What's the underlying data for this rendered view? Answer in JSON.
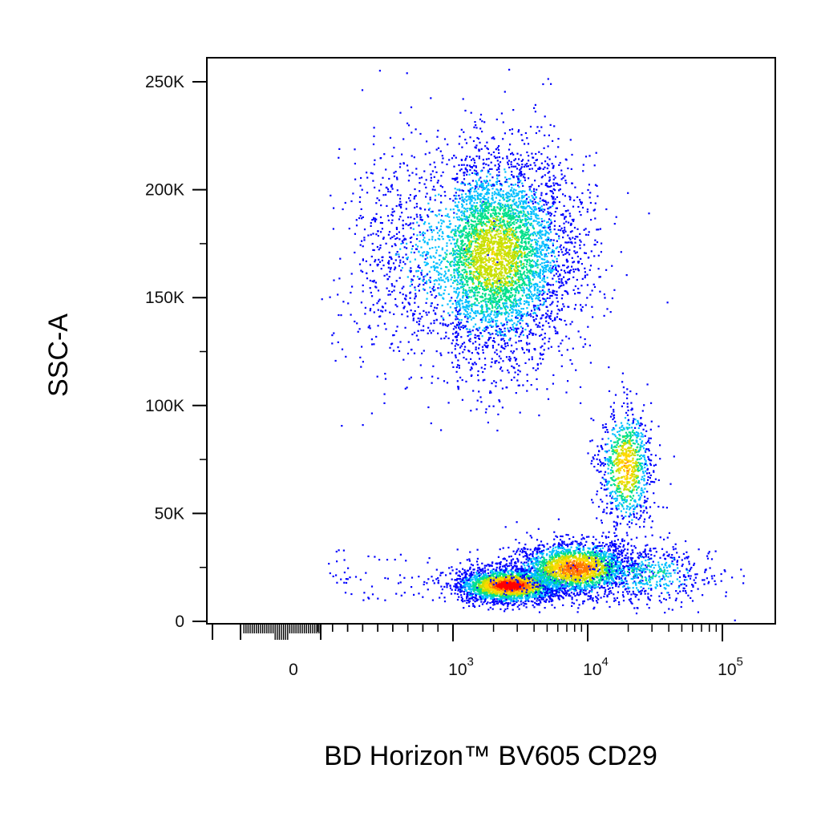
{
  "chart_data": {
    "type": "scatter",
    "subtype": "flow-cytometry-density-dot-plot",
    "title": "",
    "xlabel": "BD Horizon™ BV605  CD29",
    "ylabel": "SSC-A",
    "x_scale": "biexponential",
    "y_scale": "linear",
    "xlim": [
      -300,
      200000
    ],
    "ylim": [
      0,
      262144
    ],
    "x_ticks": [
      {
        "value": 0,
        "base": "0",
        "exp": ""
      },
      {
        "value": 1000,
        "base": "10",
        "exp": "3"
      },
      {
        "value": 10000,
        "base": "10",
        "exp": "4"
      },
      {
        "value": 100000,
        "base": "10",
        "exp": "5"
      }
    ],
    "y_ticks": [
      {
        "value": 0,
        "label": "0"
      },
      {
        "value": 50000,
        "label": "50K"
      },
      {
        "value": 100000,
        "label": "100K"
      },
      {
        "value": 150000,
        "label": "150K"
      },
      {
        "value": 200000,
        "label": "200K"
      },
      {
        "value": 250000,
        "label": "250K"
      }
    ],
    "grid": false,
    "legend": "none",
    "density_colors": [
      "#0000ff",
      "#00bfff",
      "#00e08a",
      "#c8e000",
      "#ffd800",
      "#ff7a00",
      "#ff0000"
    ],
    "populations": [
      {
        "center_x": 2000,
        "center_y": 170000,
        "spread_log_x": 0.3,
        "spread_y": 24000,
        "count": 5200,
        "peak_density": 0.55
      },
      {
        "center_x": 19000,
        "center_y": 72000,
        "spread_log_x": 0.1,
        "spread_y": 14000,
        "count": 900,
        "peak_density": 0.7
      },
      {
        "center_x": 2600,
        "center_y": 17000,
        "spread_log_x": 0.2,
        "spread_y": 4000,
        "count": 2600,
        "peak_density": 1.0
      },
      {
        "center_x": 8000,
        "center_y": 25000,
        "spread_log_x": 0.22,
        "spread_y": 6000,
        "count": 2200,
        "peak_density": 0.85
      },
      {
        "center_x": 28000,
        "center_y": 22000,
        "spread_log_x": 0.25,
        "spread_y": 7000,
        "count": 500,
        "peak_density": 0.3
      }
    ]
  }
}
